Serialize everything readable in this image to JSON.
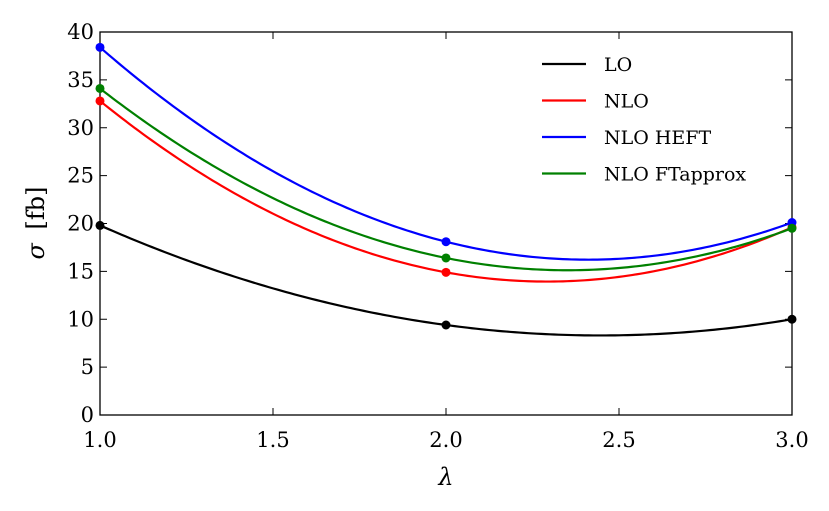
{
  "chart_data": {
    "type": "line",
    "title": "",
    "xlabel": "λ",
    "ylabel_symbol": "σ",
    "ylabel_unit": "[fb]",
    "xlim": [
      1.0,
      3.0
    ],
    "ylim": [
      0,
      40
    ],
    "xticks": [
      "1.0",
      "1.5",
      "2.0",
      "2.5",
      "3.0"
    ],
    "xtick_values": [
      1.0,
      1.5,
      2.0,
      2.5,
      3.0
    ],
    "yticks": [
      "0",
      "5",
      "10",
      "15",
      "20",
      "25",
      "30",
      "35",
      "40"
    ],
    "ytick_values": [
      0,
      5,
      10,
      15,
      20,
      25,
      30,
      35,
      40
    ],
    "legend_position": "top-right",
    "series": [
      {
        "name": "LO",
        "color": "#000000",
        "x": [
          1.0,
          2.0,
          3.0
        ],
        "values": [
          19.8,
          9.4,
          10.0
        ]
      },
      {
        "name": "NLO",
        "color": "#ff0000",
        "x": [
          1.0,
          2.0,
          3.0
        ],
        "values": [
          32.8,
          14.9,
          19.6
        ]
      },
      {
        "name": "NLO HEFT",
        "color": "#0000ff",
        "x": [
          1.0,
          2.0,
          3.0
        ],
        "values": [
          38.4,
          18.1,
          20.1
        ]
      },
      {
        "name": "NLO FTapprox",
        "color": "#008000",
        "x": [
          1.0,
          2.0,
          3.0
        ],
        "values": [
          34.1,
          16.4,
          19.5
        ]
      }
    ]
  }
}
